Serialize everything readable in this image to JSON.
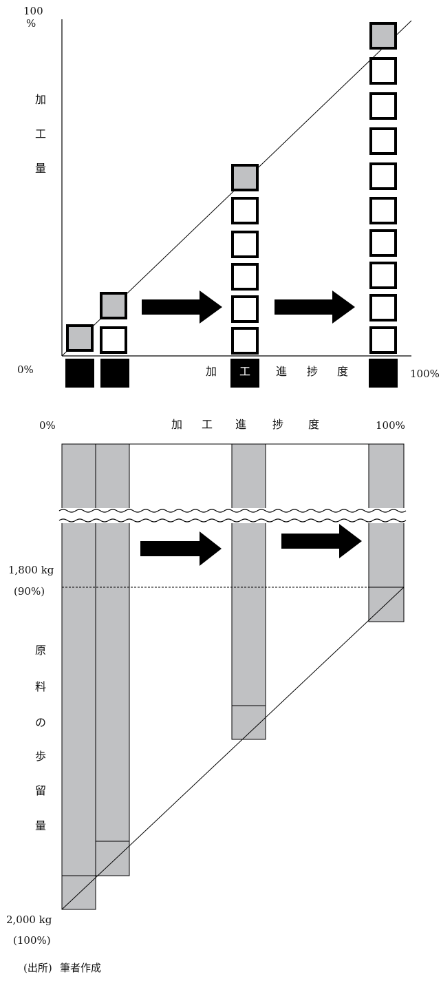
{
  "top_diagram": {
    "y_top_label": "100",
    "y_top_unit": "%",
    "y_axis_chars": [
      "加",
      "工",
      "量"
    ],
    "x_left_label": "0%",
    "x_right_label": "100%",
    "x_axis_chars": [
      "加",
      "工",
      "進",
      "捗",
      "度"
    ]
  },
  "bottom_diagram": {
    "x_left_label": "0%",
    "x_right_label": "100%",
    "x_axis_chars": [
      "加",
      "工",
      "進",
      "捗",
      "度"
    ],
    "mark_1800_value": "1,800 kg",
    "mark_1800_pct": "(90%)",
    "mark_2000_value": "2,000 kg",
    "mark_2000_pct": "(100%)",
    "y_axis_chars": [
      "原",
      "料",
      "の",
      "歩",
      "留",
      "量"
    ]
  },
  "source": {
    "label": "(出所)",
    "text": "筆者作成"
  },
  "colors": {
    "gray_fill": "#c0c1c3",
    "black": "#000000",
    "white": "#ffffff"
  }
}
